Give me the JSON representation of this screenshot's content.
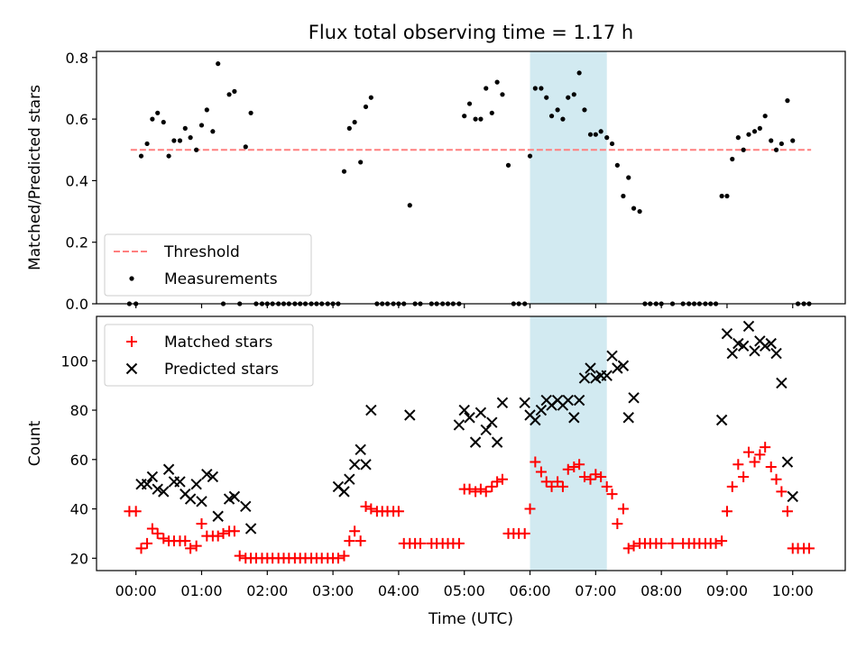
{
  "chart_data": [
    {
      "type": "scatter",
      "title": "Flux total observing time = 1.17 h",
      "xlabel": "",
      "ylabel": "Matched/Predicted stars",
      "xlim": [
        -0.6,
        10.8
      ],
      "ylim": [
        0,
        0.82
      ],
      "yticks": [
        "0.0",
        "0.2",
        "0.4",
        "0.6",
        "0.8"
      ],
      "legend": "lower-left",
      "highlight_span": [
        6.0,
        7.17
      ],
      "highlight_color": "#add8e6",
      "threshold": {
        "name": "Threshold",
        "value": 0.5,
        "x_range": [
          -0.08,
          10.28
        ],
        "color": "#ff7f7f",
        "style": "dashed"
      },
      "series": [
        {
          "name": "Measurements",
          "color": "#000000",
          "marker": "dot",
          "x": [
            -0.1,
            0.0,
            0.08,
            0.17,
            0.25,
            0.33,
            0.42,
            0.5,
            0.58,
            0.67,
            0.75,
            0.83,
            0.92,
            1.0,
            1.08,
            1.17,
            1.25,
            1.33,
            1.42,
            1.5,
            1.58,
            1.67,
            1.75,
            1.83,
            1.92,
            2.0,
            2.08,
            2.17,
            2.25,
            2.33,
            2.42,
            2.5,
            2.58,
            2.67,
            2.75,
            2.83,
            2.92,
            3.0,
            3.08,
            3.17,
            3.25,
            3.33,
            3.42,
            3.5,
            3.58,
            3.67,
            3.75,
            3.83,
            3.92,
            4.0,
            4.08,
            4.17,
            4.25,
            4.33,
            4.5,
            4.58,
            4.67,
            4.75,
            4.83,
            4.92,
            5.0,
            5.08,
            5.17,
            5.25,
            5.33,
            5.42,
            5.5,
            5.58,
            5.67,
            5.75,
            5.83,
            5.92,
            6.0,
            6.08,
            6.17,
            6.25,
            6.33,
            6.42,
            6.5,
            6.58,
            6.67,
            6.75,
            6.83,
            6.92,
            7.0,
            7.08,
            7.17,
            7.25,
            7.33,
            7.42,
            7.5,
            7.58,
            7.67,
            7.75,
            7.83,
            7.92,
            8.0,
            8.17,
            8.33,
            8.42,
            8.5,
            8.58,
            8.67,
            8.75,
            8.83,
            8.92,
            9.0,
            9.08,
            9.17,
            9.25,
            9.33,
            9.42,
            9.5,
            9.58,
            9.67,
            9.75,
            9.83,
            9.92,
            10.0,
            10.08,
            10.17,
            10.25
          ],
          "y": [
            0.0,
            0.0,
            0.48,
            0.52,
            0.6,
            0.62,
            0.59,
            0.48,
            0.53,
            0.53,
            0.57,
            0.54,
            0.5,
            0.58,
            0.63,
            0.56,
            0.78,
            0.0,
            0.68,
            0.69,
            0.0,
            0.51,
            0.62,
            0.0,
            0.0,
            0.0,
            0.0,
            0.0,
            0.0,
            0.0,
            0.0,
            0.0,
            0.0,
            0.0,
            0.0,
            0.0,
            0.0,
            0.0,
            0.0,
            0.43,
            0.57,
            0.59,
            0.46,
            0.64,
            0.67,
            0.0,
            0.0,
            0.0,
            0.0,
            0.0,
            0.0,
            0.32,
            0.0,
            0.0,
            0.0,
            0.0,
            0.0,
            0.0,
            0.0,
            0.0,
            0.61,
            0.65,
            0.6,
            0.6,
            0.7,
            0.62,
            0.72,
            0.68,
            0.45,
            0.0,
            0.0,
            0.0,
            0.48,
            0.7,
            0.7,
            0.67,
            0.61,
            0.63,
            0.6,
            0.67,
            0.68,
            0.75,
            0.63,
            0.55,
            0.55,
            0.56,
            0.54,
            0.52,
            0.45,
            0.35,
            0.41,
            0.31,
            0.3,
            0.0,
            0.0,
            0.0,
            0.0,
            0.0,
            0.0,
            0.0,
            0.0,
            0.0,
            0.0,
            0.0,
            0.0,
            0.35,
            0.35,
            0.47,
            0.54,
            0.5,
            0.55,
            0.56,
            0.57,
            0.61,
            0.53,
            0.5,
            0.52,
            0.66,
            0.53,
            0.0,
            0.0,
            0.0
          ]
        }
      ]
    },
    {
      "type": "scatter",
      "title": "",
      "xlabel": "Time (UTC)",
      "ylabel": "Count",
      "xlim": [
        -0.6,
        10.8
      ],
      "ylim": [
        15,
        118
      ],
      "xticks": [
        "00:00",
        "01:00",
        "02:00",
        "03:00",
        "04:00",
        "05:00",
        "06:00",
        "07:00",
        "08:00",
        "09:00",
        "10:00"
      ],
      "yticks": [
        "20",
        "40",
        "60",
        "80",
        "100"
      ],
      "legend": "upper-left",
      "highlight_span": [
        6.0,
        7.17
      ],
      "highlight_color": "#add8e6",
      "series": [
        {
          "name": "Matched stars",
          "color": "#ff0000",
          "marker": "plus",
          "x": [
            -0.1,
            0.0,
            0.08,
            0.17,
            0.25,
            0.33,
            0.42,
            0.5,
            0.58,
            0.67,
            0.75,
            0.83,
            0.92,
            1.0,
            1.08,
            1.17,
            1.25,
            1.33,
            1.42,
            1.5,
            1.58,
            1.67,
            1.75,
            1.83,
            1.92,
            2.0,
            2.08,
            2.17,
            2.25,
            2.33,
            2.42,
            2.5,
            2.58,
            2.67,
            2.75,
            2.83,
            2.92,
            3.0,
            3.08,
            3.17,
            3.25,
            3.33,
            3.42,
            3.5,
            3.58,
            3.67,
            3.75,
            3.83,
            3.92,
            4.0,
            4.08,
            4.17,
            4.25,
            4.33,
            4.5,
            4.58,
            4.67,
            4.75,
            4.83,
            4.92,
            5.0,
            5.08,
            5.17,
            5.25,
            5.33,
            5.42,
            5.5,
            5.58,
            5.67,
            5.75,
            5.83,
            5.92,
            6.0,
            6.08,
            6.17,
            6.25,
            6.33,
            6.42,
            6.5,
            6.58,
            6.67,
            6.75,
            6.83,
            6.92,
            7.0,
            7.08,
            7.17,
            7.25,
            7.33,
            7.42,
            7.5,
            7.58,
            7.67,
            7.75,
            7.83,
            7.92,
            8.0,
            8.17,
            8.33,
            8.42,
            8.5,
            8.58,
            8.67,
            8.75,
            8.83,
            8.92,
            9.0,
            9.08,
            9.17,
            9.25,
            9.33,
            9.42,
            9.5,
            9.58,
            9.67,
            9.75,
            9.83,
            9.92,
            10.0,
            10.08,
            10.17,
            10.25
          ],
          "y": [
            39,
            39,
            24,
            26,
            32,
            30,
            28,
            27,
            27,
            27,
            27,
            24,
            25,
            34,
            29,
            29,
            29,
            30,
            31,
            31,
            21,
            20,
            20,
            20,
            20,
            20,
            20,
            20,
            20,
            20,
            20,
            20,
            20,
            20,
            20,
            20,
            20,
            20,
            20,
            21,
            27,
            31,
            27,
            41,
            40,
            39,
            39,
            39,
            39,
            39,
            26,
            26,
            26,
            26,
            26,
            26,
            26,
            26,
            26,
            26,
            48,
            48,
            47,
            48,
            47,
            49,
            51,
            52,
            30,
            30,
            30,
            30,
            40,
            59,
            55,
            51,
            49,
            51,
            49,
            56,
            57,
            58,
            53,
            52,
            54,
            53,
            49,
            46,
            34,
            40,
            24,
            25,
            26,
            26,
            26,
            26,
            26,
            26,
            26,
            26,
            26,
            26,
            26,
            26,
            26,
            27,
            39,
            49,
            58,
            53,
            63,
            59,
            62,
            65,
            57,
            52,
            47,
            39,
            24,
            24,
            24,
            24
          ]
        },
        {
          "name": "Predicted stars",
          "color": "#000000",
          "marker": "x",
          "x": [
            0.08,
            0.17,
            0.25,
            0.33,
            0.42,
            0.5,
            0.58,
            0.67,
            0.75,
            0.83,
            0.92,
            1.0,
            1.08,
            1.17,
            1.25,
            1.42,
            1.5,
            1.67,
            1.75,
            3.08,
            3.17,
            3.25,
            3.33,
            3.42,
            3.5,
            3.58,
            4.17,
            4.92,
            5.0,
            5.08,
            5.17,
            5.25,
            5.33,
            5.42,
            5.5,
            5.58,
            5.92,
            6.0,
            6.08,
            6.17,
            6.25,
            6.33,
            6.42,
            6.5,
            6.58,
            6.67,
            6.75,
            6.83,
            6.92,
            7.0,
            7.08,
            7.17,
            7.25,
            7.33,
            7.42,
            7.5,
            7.58,
            8.92,
            9.0,
            9.08,
            9.17,
            9.25,
            9.33,
            9.42,
            9.5,
            9.58,
            9.67,
            9.75,
            9.83,
            9.92,
            10.0
          ],
          "y": [
            50,
            50,
            53,
            48,
            47,
            56,
            51,
            51,
            46,
            44,
            50,
            43,
            54,
            53,
            37,
            44,
            45,
            41,
            32,
            49,
            47,
            52,
            58,
            64,
            58,
            80,
            78,
            74,
            80,
            77,
            67,
            79,
            72,
            75,
            67,
            83,
            83,
            78,
            76,
            80,
            84,
            82,
            84,
            82,
            84,
            77,
            84,
            93,
            97,
            93,
            94,
            94,
            102,
            97,
            98,
            77,
            85,
            76,
            111,
            103,
            107,
            106,
            114,
            104,
            108,
            106,
            107,
            103,
            91,
            59,
            45
          ]
        }
      ]
    }
  ]
}
